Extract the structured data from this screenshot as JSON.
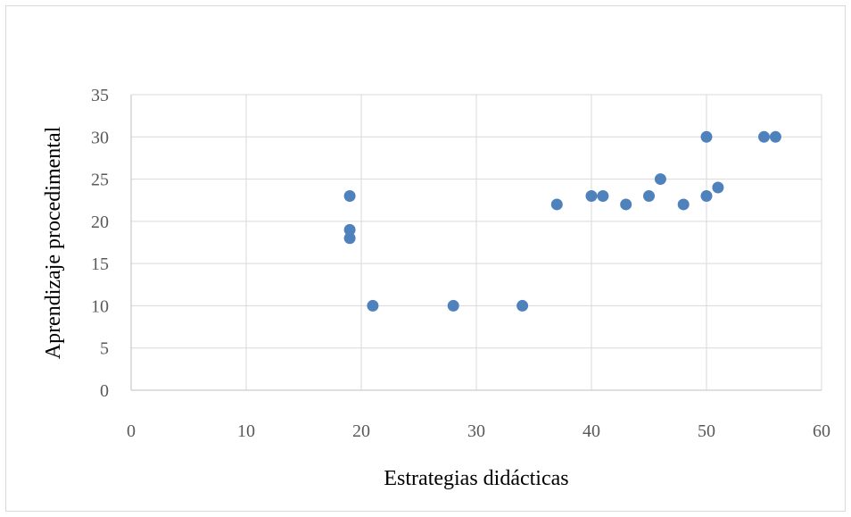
{
  "chart_data": {
    "type": "scatter",
    "title": "",
    "xlabel": "Estrategias didácticas",
    "ylabel": "Aprendizaje procedimental",
    "xlim": [
      0,
      60
    ],
    "ylim": [
      0,
      35
    ],
    "x_ticks": [
      0,
      10,
      20,
      30,
      40,
      50,
      60
    ],
    "y_ticks": [
      0,
      5,
      10,
      15,
      20,
      25,
      30,
      35
    ],
    "grid": true,
    "legend": "none",
    "marker_color": "#4f81bd",
    "gridline_color": "#d9d9d9",
    "axis_color": "#bfbfbf",
    "points": [
      {
        "x": 19,
        "y": 23
      },
      {
        "x": 19,
        "y": 19
      },
      {
        "x": 19,
        "y": 18
      },
      {
        "x": 21,
        "y": 10
      },
      {
        "x": 28,
        "y": 10
      },
      {
        "x": 34,
        "y": 10
      },
      {
        "x": 37,
        "y": 22
      },
      {
        "x": 40,
        "y": 23
      },
      {
        "x": 41,
        "y": 23
      },
      {
        "x": 43,
        "y": 22
      },
      {
        "x": 45,
        "y": 23
      },
      {
        "x": 46,
        "y": 25
      },
      {
        "x": 48,
        "y": 22
      },
      {
        "x": 50,
        "y": 30
      },
      {
        "x": 50,
        "y": 23
      },
      {
        "x": 51,
        "y": 24
      },
      {
        "x": 55,
        "y": 30
      },
      {
        "x": 56,
        "y": 30
      }
    ]
  }
}
